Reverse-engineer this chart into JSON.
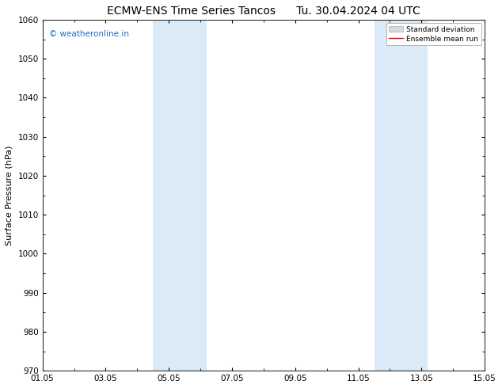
{
  "title": "ECMW-ENS Time Series Tancos",
  "title2": "Tu. 30.04.2024 04 UTC",
  "ylabel": "Surface Pressure (hPa)",
  "ylim": [
    970,
    1060
  ],
  "yticks": [
    970,
    980,
    990,
    1000,
    1010,
    1020,
    1030,
    1040,
    1050,
    1060
  ],
  "xtick_labels": [
    "01.05",
    "03.05",
    "05.05",
    "07.05",
    "09.05",
    "11.05",
    "13.05",
    "15.05"
  ],
  "xtick_positions": [
    0,
    2,
    4,
    6,
    8,
    10,
    12,
    14
  ],
  "shaded_bands": [
    {
      "x_start": 3.5,
      "x_end": 5.2
    },
    {
      "x_start": 10.5,
      "x_end": 12.2
    }
  ],
  "shade_color": "#daeaf7",
  "watermark_text": "© weatheronline.in",
  "watermark_color": "#1a6fc4",
  "legend_std_label": "Standard deviation",
  "legend_mean_label": "Ensemble mean run",
  "legend_std_facecolor": "#d8d8d8",
  "legend_std_edgecolor": "#aaaaaa",
  "legend_mean_color": "#ff0000",
  "background_color": "#ffffff",
  "plot_bg_color": "#ffffff",
  "title_fontsize": 10,
  "axis_fontsize": 8,
  "tick_fontsize": 7.5,
  "watermark_fontsize": 7.5
}
